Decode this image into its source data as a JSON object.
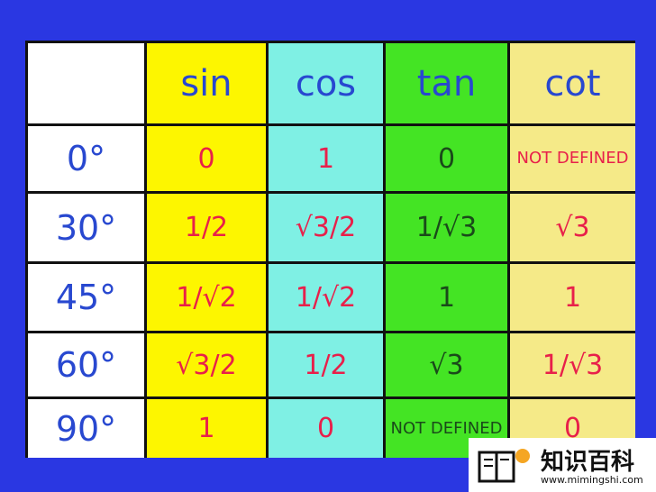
{
  "table": {
    "headers": [
      "sin",
      "cos",
      "tan",
      "cot"
    ],
    "rows": [
      [
        "0°",
        "0",
        "1",
        "0",
        "NOT DEFINED"
      ],
      [
        "30°",
        "1/2",
        "√3/2",
        "1/√3",
        "√3"
      ],
      [
        "45°",
        "1/√2",
        "1/√2",
        "1",
        "1"
      ],
      [
        "60°",
        "√3/2",
        "1/2",
        "√3",
        "1/√3"
      ],
      [
        "90°",
        "1",
        "0",
        "NOT DEFINED",
        "0"
      ]
    ]
  },
  "watermark": {
    "title": "知识百科",
    "url": "www.mimingshi.com"
  }
}
